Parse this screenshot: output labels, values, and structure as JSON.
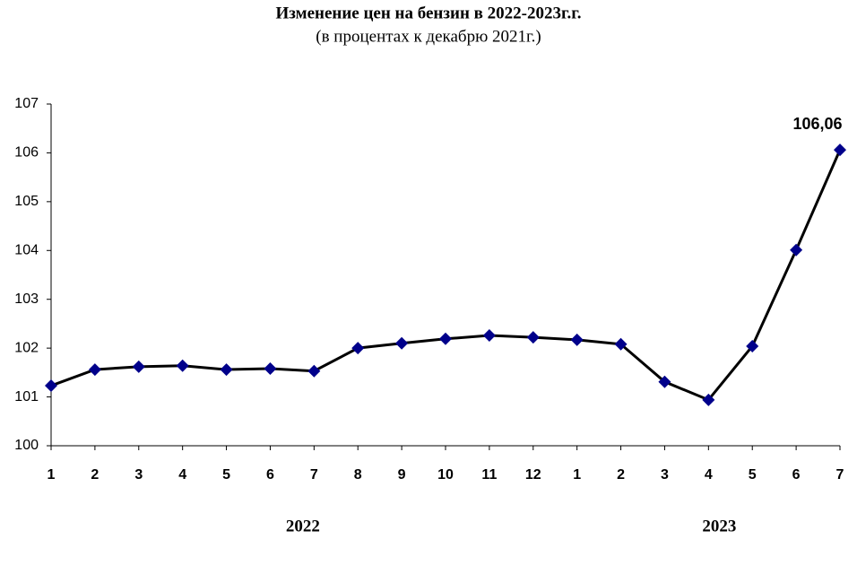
{
  "chart_data": {
    "type": "line",
    "title": "Изменение цен на бензин в 2022-2023г.г.",
    "subtitle": "(в процентах к декабрю 2021г.)",
    "categories": [
      "1",
      "2",
      "3",
      "4",
      "5",
      "6",
      "7",
      "8",
      "9",
      "10",
      "11",
      "12",
      "1",
      "2",
      "3",
      "4",
      "5",
      "6",
      "7"
    ],
    "groups": [
      "2022",
      "2023"
    ],
    "series": [
      {
        "color": "#000000",
        "marker_color": "#00008b",
        "values": [
          101.23,
          101.56,
          101.62,
          101.64,
          101.56,
          101.58,
          101.53,
          102.0,
          102.1,
          102.19,
          102.26,
          102.22,
          102.17,
          102.08,
          101.31,
          100.94,
          102.04,
          104.01,
          106.06
        ],
        "value_labels": [
          null,
          null,
          null,
          null,
          null,
          null,
          null,
          null,
          null,
          null,
          null,
          null,
          null,
          null,
          null,
          null,
          null,
          null,
          "106,06"
        ]
      }
    ],
    "ylim": [
      100,
      107
    ],
    "yticks": [
      100,
      101,
      102,
      103,
      104,
      105,
      106,
      107
    ],
    "grid": false
  }
}
